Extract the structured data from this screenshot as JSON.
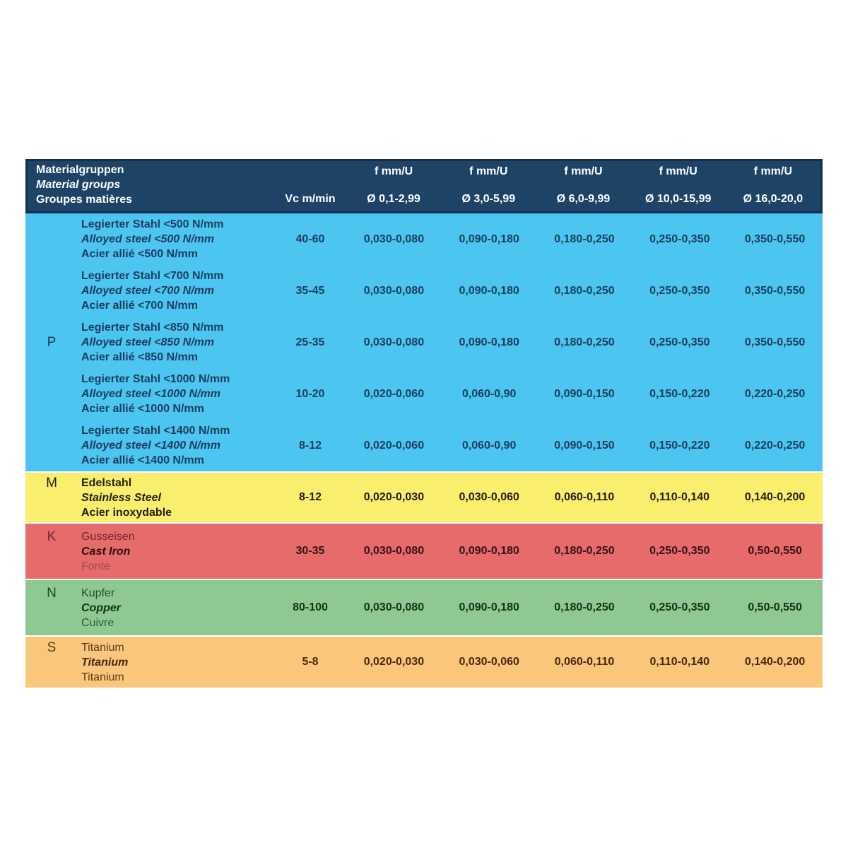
{
  "page": {
    "background": "#ffffff"
  },
  "header": {
    "bg": "#1d4366",
    "border_color": "#16304a",
    "text_color": "#ffffff",
    "title_de": "Materialgruppen",
    "title_en": "Material groups",
    "title_fr": "Groupes matières",
    "vc_label": "Vc m/min",
    "feed_label": "f mm/U",
    "diameter_ranges": [
      "Ø 0,1-2,99",
      "Ø 3,0-5,99",
      "Ø 6,0-9,99",
      "Ø 10,0-15,99",
      "Ø 16,0-20,0"
    ]
  },
  "groups": [
    {
      "letter": "P",
      "style": {
        "bg": "#4cc5f1",
        "letter": "#1c3e5e",
        "de": "#1c3e5e",
        "en": "#1c3e5e",
        "fr": "#1c3e5e",
        "value": "#1c3e5e",
        "bold_all": true
      },
      "rows": [
        {
          "de": "Legierter Stahl <500 N/mm",
          "en": "Alloyed steel <500 N/mm",
          "fr": "Acier allié <500 N/mm",
          "vc": "40-60",
          "f": [
            "0,030-0,080",
            "0,090-0,180",
            "0,180-0,250",
            "0,250-0,350",
            "0,350-0,550"
          ]
        },
        {
          "de": "Legierter Stahl <700 N/mm",
          "en": "Alloyed steel <700 N/mm",
          "fr": "Acier allié <700 N/mm",
          "vc": "35-45",
          "f": [
            "0,030-0,080",
            "0,090-0,180",
            "0,180-0,250",
            "0,250-0,350",
            "0,350-0,550"
          ]
        },
        {
          "de": "Legierter Stahl <850 N/mm",
          "en": "Alloyed steel <850 N/mm",
          "fr": "Acier allié <850 N/mm",
          "vc": "25-35",
          "f": [
            "0,030-0,080",
            "0,090-0,180",
            "0,180-0,250",
            "0,250-0,350",
            "0,350-0,550"
          ]
        },
        {
          "de": "Legierter Stahl <1000 N/mm",
          "en": "Alloyed steel <1000 N/mm",
          "fr": "Acier allié <1000 N/mm",
          "vc": "10-20",
          "f": [
            "0,020-0,060",
            "0,060-0,90",
            "0,090-0,150",
            "0,150-0,220",
            "0,220-0,250"
          ]
        },
        {
          "de": "Legierter Stahl <1400 N/mm",
          "en": "Alloyed steel <1400 N/mm",
          "fr": "Acier allié <1400 N/mm",
          "vc": "8-12",
          "f": [
            "0,020-0,060",
            "0,060-0,90",
            "0,090-0,150",
            "0,150-0,220",
            "0,220-0,250"
          ]
        }
      ]
    },
    {
      "letter": "M",
      "style": {
        "bg": "#f9ee6e",
        "letter": "#23210f",
        "de": "#23210f",
        "en": "#23210f",
        "fr": "#23210f",
        "value": "#23210f",
        "bold_all": true
      },
      "rows": [
        {
          "de": "Edelstahl",
          "en": "Stainless Steel",
          "fr": "Acier inoxydable",
          "vc": "8-12",
          "f": [
            "0,020-0,030",
            "0,030-0,060",
            "0,060-0,110",
            "0,110-0,140",
            "0,140-0,200"
          ]
        }
      ]
    },
    {
      "letter": "K",
      "style": {
        "bg": "#e66b6b",
        "letter": "#73262b",
        "de": "#73262b",
        "en": "#330d10",
        "fr": "#a04a4e",
        "value": "#3a1013",
        "bold_all": false
      },
      "rows": [
        {
          "de": "Gusseisen",
          "en": "Cast Iron",
          "fr": "Fonte",
          "vc": "30-35",
          "f": [
            "0,030-0,080",
            "0,090-0,180",
            "0,180-0,250",
            "0,250-0,350",
            "0,50-0,550"
          ]
        }
      ]
    },
    {
      "letter": "N",
      "style": {
        "bg": "#8ec892",
        "letter": "#1d4a24",
        "de": "#224f2a",
        "en": "#113317",
        "fr": "#2c5e34",
        "value": "#113317",
        "bold_all": false
      },
      "rows": [
        {
          "de": "Kupfer",
          "en": "Copper",
          "fr": "Cuivre",
          "vc": "80-100",
          "f": [
            "0,030-0,080",
            "0,090-0,180",
            "0,180-0,250",
            "0,250-0,350",
            "0,50-0,550"
          ]
        }
      ]
    },
    {
      "letter": "S",
      "style": {
        "bg": "#f9c67c",
        "letter": "#5e3d17",
        "de": "#5e3d17",
        "en": "#47290a",
        "fr": "#5e3d17",
        "value": "#47290a",
        "bold_all": false
      },
      "rows": [
        {
          "de": "Titanium",
          "en": "Titanium",
          "fr": "Titanium",
          "vc": "5-8",
          "f": [
            "0,020-0,030",
            "0,030-0,060",
            "0,060-0,110",
            "0,110-0,140",
            "0,140-0,200"
          ]
        }
      ]
    }
  ]
}
